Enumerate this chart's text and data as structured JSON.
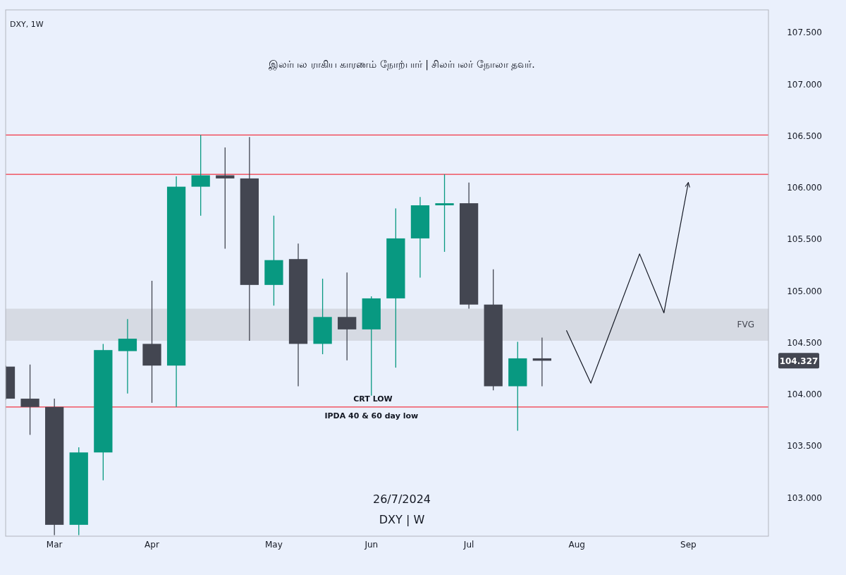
{
  "chart_data": {
    "type": "candlestick",
    "title": "DXY, 1W",
    "subtitle": "இலர்பல ராகிய காரணம் நோற்பார் | சிலர்பலர் நோலா தவர்.",
    "x": [
      "2024-02-19",
      "2024-02-26",
      "2024-03-04",
      "2024-03-11",
      "2024-03-18",
      "2024-03-25",
      "2024-04-01",
      "2024-04-08",
      "2024-04-15",
      "2024-04-22",
      "2024-04-29",
      "2024-05-06",
      "2024-05-13",
      "2024-05-20",
      "2024-05-27",
      "2024-06-03",
      "2024-06-10",
      "2024-06-17",
      "2024-06-24",
      "2024-07-01",
      "2024-07-08",
      "2024-07-15",
      "2024-07-22"
    ],
    "ohlc": [
      [
        104.27,
        104.28,
        103.95,
        103.96
      ],
      [
        103.96,
        104.29,
        103.61,
        103.88
      ],
      [
        103.88,
        103.96,
        102.64,
        102.74
      ],
      [
        102.74,
        103.49,
        102.64,
        103.44
      ],
      [
        103.44,
        104.49,
        103.17,
        104.43
      ],
      [
        104.42,
        104.73,
        104.01,
        104.54
      ],
      [
        104.49,
        105.1,
        103.92,
        104.28
      ],
      [
        104.28,
        106.11,
        103.88,
        106.01
      ],
      [
        106.01,
        106.51,
        105.73,
        106.12
      ],
      [
        106.12,
        106.39,
        105.41,
        106.09
      ],
      [
        106.09,
        106.49,
        104.52,
        105.06
      ],
      [
        105.06,
        105.73,
        104.86,
        105.3
      ],
      [
        105.31,
        105.46,
        104.08,
        104.49
      ],
      [
        104.49,
        105.12,
        104.39,
        104.75
      ],
      [
        104.75,
        105.18,
        104.33,
        104.63
      ],
      [
        104.63,
        104.95,
        103.99,
        104.93
      ],
      [
        104.93,
        105.8,
        104.26,
        105.51
      ],
      [
        105.51,
        105.91,
        105.13,
        105.83
      ],
      [
        105.83,
        106.13,
        105.38,
        105.85
      ],
      [
        105.85,
        106.05,
        104.83,
        104.87
      ],
      [
        104.87,
        105.21,
        104.04,
        104.08
      ],
      [
        104.08,
        104.51,
        103.65,
        104.35
      ],
      [
        104.35,
        104.55,
        104.08,
        104.327
      ]
    ],
    "colors": [
      "#434651",
      "#434651",
      "#434651",
      "#089981",
      "#089981",
      "#089981",
      "#434651",
      "#089981",
      "#089981",
      "#434651",
      "#434651",
      "#089981",
      "#434651",
      "#089981",
      "#434651",
      "#089981",
      "#089981",
      "#089981",
      "#089981",
      "#434651",
      "#434651",
      "#089981",
      "#434651"
    ],
    "series": [
      {
        "type": "line",
        "x": [
          "2024-07-29",
          "2024-08-05",
          "2024-08-19",
          "2024-08-26",
          "2024-09-02"
        ],
        "values": [
          104.62,
          104.11,
          105.36,
          104.79,
          106.05
        ],
        "color": "#131722"
      }
    ],
    "xlim": [
      "2024-02-19",
      "2024-09-25"
    ],
    "xticks": [
      {
        "value": "2024-03-04",
        "label": "Mar"
      },
      {
        "value": "2024-04-01",
        "label": "Apr"
      },
      {
        "value": "2024-05-06",
        "label": "May"
      },
      {
        "value": "2024-06-03",
        "label": "Jun"
      },
      {
        "value": "2024-07-01",
        "label": "Jul"
      },
      {
        "value": "2024-08-01",
        "label": "Aug"
      },
      {
        "value": "2024-09-02",
        "label": "Sep"
      }
    ],
    "ylim": [
      102.63,
      107.72
    ],
    "yticks": [
      {
        "value": 103,
        "label": "103.000"
      },
      {
        "value": 103.5,
        "label": "103.500"
      },
      {
        "value": 104,
        "label": "104.000"
      },
      {
        "value": 104.5,
        "label": "104.500"
      },
      {
        "value": 105,
        "label": "105.000"
      },
      {
        "value": 105.5,
        "label": "105.500"
      },
      {
        "value": 106,
        "label": "106.000"
      },
      {
        "value": 106.5,
        "label": "106.500"
      },
      {
        "value": 107,
        "label": "107.000"
      },
      {
        "value": 107.5,
        "label": "107.500"
      }
    ],
    "ref_lines": [
      {
        "axis": "y",
        "value": 106.51,
        "color": "#f23645"
      },
      {
        "axis": "y",
        "value": 106.13,
        "color": "#f23645"
      },
      {
        "axis": "y",
        "value": 103.88,
        "label": "CRT LOW",
        "color": "#f23645"
      }
    ],
    "bands": [
      {
        "axis": "y",
        "from": 104.52,
        "to": 104.83,
        "label": "FVG",
        "color": "#d1d4dc"
      }
    ],
    "annotations": [
      {
        "text": "IPDA 40 & 60 day low",
        "x": "2024-06-03",
        "y": 103.88
      },
      "104.327",
      "26/7/2024",
      "DXY | W"
    ],
    "grid": false
  }
}
